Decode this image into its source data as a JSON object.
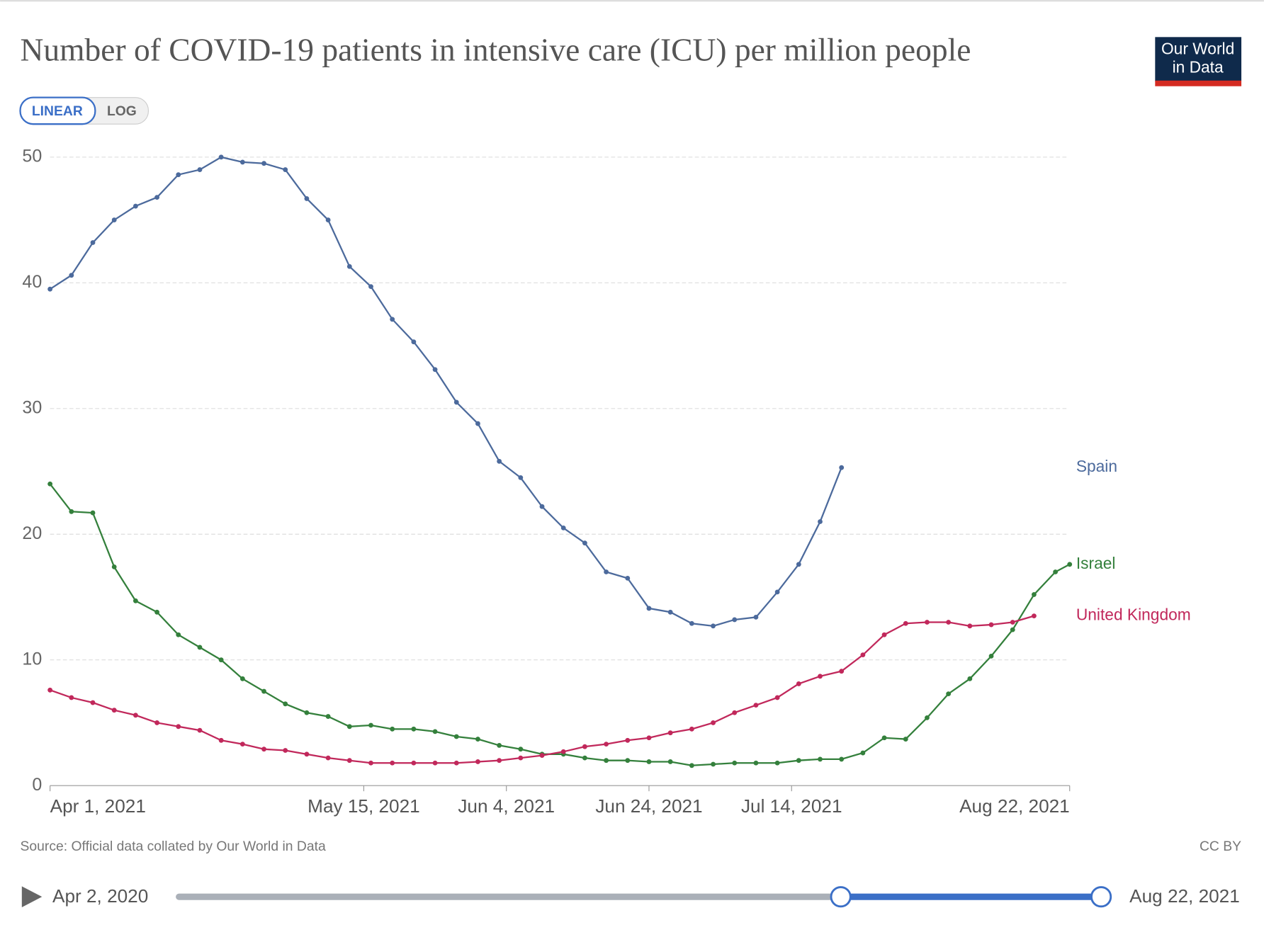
{
  "chart_data": {
    "type": "line",
    "title": "Number of COVID-19 patients in intensive care (ICU) per million people",
    "logo": [
      "Our World",
      "in Data"
    ],
    "scale_buttons": [
      "LINEAR",
      "LOG"
    ],
    "log_scale": false,
    "grid": true,
    "x": [
      "2021-04-01",
      "2021-04-04",
      "2021-04-07",
      "2021-04-10",
      "2021-04-13",
      "2021-04-16",
      "2021-04-19",
      "2021-04-22",
      "2021-04-25",
      "2021-04-28",
      "2021-05-01",
      "2021-05-04",
      "2021-05-07",
      "2021-05-10",
      "2021-05-13",
      "2021-05-16",
      "2021-05-19",
      "2021-05-22",
      "2021-05-25",
      "2021-05-28",
      "2021-05-31",
      "2021-06-03",
      "2021-06-06",
      "2021-06-09",
      "2021-06-12",
      "2021-06-15",
      "2021-06-18",
      "2021-06-21",
      "2021-06-24",
      "2021-06-27",
      "2021-06-30",
      "2021-07-03",
      "2021-07-06",
      "2021-07-09",
      "2021-07-12",
      "2021-07-15",
      "2021-07-18",
      "2021-07-21",
      "2021-07-24",
      "2021-07-27",
      "2021-07-30",
      "2021-08-02",
      "2021-08-05",
      "2021-08-08",
      "2021-08-11",
      "2021-08-14",
      "2021-08-17",
      "2021-08-20",
      "2021-08-22"
    ],
    "xlim": [
      "2021-04-01",
      "2021-08-22"
    ],
    "xticks": [
      {
        "value": "2021-04-01",
        "label": "Apr 1, 2021"
      },
      {
        "value": "2021-05-15",
        "label": "May 15, 2021"
      },
      {
        "value": "2021-06-04",
        "label": "Jun 4, 2021"
      },
      {
        "value": "2021-06-24",
        "label": "Jun 24, 2021"
      },
      {
        "value": "2021-07-14",
        "label": "Jul 14, 2021"
      },
      {
        "value": "2021-08-22",
        "label": "Aug 22, 2021"
      }
    ],
    "ylim": [
      0,
      50
    ],
    "yticks": [
      0,
      10,
      20,
      30,
      40,
      50
    ],
    "series": [
      {
        "name": "Spain",
        "color": "#4c6a9c",
        "values": [
          39.5,
          40.6,
          43.2,
          45,
          46.1,
          46.8,
          48.6,
          49,
          50,
          49.6,
          49.5,
          49,
          46.7,
          45,
          41.3,
          39.7,
          37.1,
          35.3,
          33.1,
          30.5,
          28.8,
          25.8,
          24.5,
          22.2,
          20.5,
          19.3,
          17,
          16.5,
          14.1,
          13.8,
          12.9,
          12.7,
          13.2,
          13.4,
          15.4,
          17.6,
          21,
          25.3,
          null,
          null,
          null,
          null,
          null,
          null,
          null,
          null,
          null,
          null,
          null
        ]
      },
      {
        "name": "Israel",
        "color": "#34803c",
        "values": [
          24,
          21.8,
          21.7,
          17.4,
          14.7,
          13.8,
          12,
          11,
          10,
          8.5,
          7.5,
          6.5,
          5.8,
          5.5,
          4.7,
          4.8,
          4.5,
          4.5,
          4.3,
          3.9,
          3.7,
          3.2,
          2.9,
          2.5,
          2.5,
          2.2,
          2,
          2,
          1.9,
          1.9,
          1.6,
          1.7,
          1.8,
          1.8,
          1.8,
          2,
          2.1,
          2.1,
          2.6,
          3.8,
          3.7,
          5.4,
          7.3,
          8.5,
          10.3,
          12.4,
          15.2,
          17,
          17.6
        ]
      },
      {
        "name": "United Kingdom",
        "color": "#c1285b",
        "values": [
          7.6,
          7,
          6.6,
          6,
          5.6,
          5,
          4.7,
          4.4,
          3.6,
          3.3,
          2.9,
          2.8,
          2.5,
          2.2,
          2,
          1.8,
          1.8,
          1.8,
          1.8,
          1.8,
          1.9,
          2,
          2.2,
          2.4,
          2.7,
          3.1,
          3.3,
          3.6,
          3.8,
          4.2,
          4.5,
          5,
          5.8,
          6.4,
          7,
          8.1,
          8.7,
          9.1,
          10.4,
          12,
          12.9,
          13,
          13,
          12.7,
          12.8,
          13,
          13.5,
          null,
          null
        ]
      }
    ],
    "source": "Source: Official data collated by Our World in Data",
    "license": "CC BY",
    "timeline": {
      "start": "Apr 2, 2020",
      "end": "Aug 22, 2021"
    }
  }
}
